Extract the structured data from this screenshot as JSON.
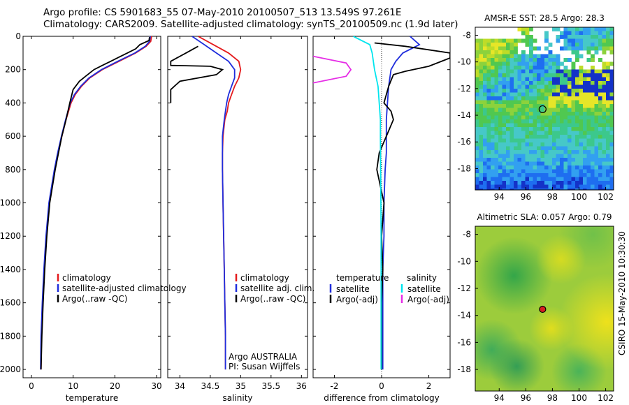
{
  "header": {
    "line1": "Argo profile: CS 5901683_55 07-May-2010 20100507_513 13.549S 97.261E",
    "line2": "Climatology: CARS2009. Satellite-adjusted climatology: synTS_20100509.nc (1.9d later)"
  },
  "side_label": "CSIRO 15-May-2010 10:30:30",
  "colors": {
    "climatology": "#e41a1c",
    "satellite": "#1f2ddc",
    "argo": "#000000",
    "sat_salt": "#00e5ee",
    "argo_salt": "#e62ee6"
  },
  "chart_data": [
    {
      "id": "temp",
      "type": "line",
      "xlabel": "temperature",
      "ylabel": "",
      "xlim": [
        -2,
        31
      ],
      "ylim": [
        2050,
        0
      ],
      "xticks": [
        0,
        10,
        20,
        30
      ],
      "yticks": [
        0,
        200,
        400,
        600,
        800,
        1000,
        1200,
        1400,
        1600,
        1800,
        2000
      ],
      "legend": [
        "climatology",
        "satellite-adjusted climatology",
        "Argo(..raw -QC)"
      ],
      "series": [
        {
          "name": "climatology",
          "color": "#e41a1c",
          "x": [
            28.8,
            28.6,
            27.5,
            25,
            21,
            17,
            14,
            12,
            10.5,
            9.5,
            8.3,
            7.3,
            6.4,
            5.6,
            4.3,
            3.6,
            3.1,
            2.7,
            2.4,
            2.3
          ],
          "y": [
            0,
            30,
            60,
            100,
            150,
            200,
            250,
            300,
            350,
            400,
            500,
            600,
            700,
            800,
            1000,
            1200,
            1400,
            1600,
            1800,
            2000
          ]
        },
        {
          "name": "satellite-adjusted climatology",
          "color": "#1f2ddc",
          "x": [
            28.5,
            28.3,
            27.3,
            24.8,
            20.7,
            16.8,
            13.8,
            11.8,
            10.3,
            9.3,
            8.2,
            7.2,
            6.3,
            5.5,
            4.2,
            3.5,
            3,
            2.6,
            2.3,
            2.2
          ],
          "y": [
            0,
            30,
            60,
            100,
            150,
            200,
            250,
            300,
            350,
            400,
            500,
            600,
            700,
            800,
            1000,
            1200,
            1400,
            1600,
            1800,
            2000
          ]
        },
        {
          "name": "Argo(..raw -QC)",
          "color": "#000000",
          "x": [
            28.3,
            28.2,
            26,
            25,
            23,
            21,
            19,
            17,
            15,
            13,
            11.5,
            10,
            9.2,
            8.3,
            7.3,
            6.5,
            5.7,
            4.4,
            3.7,
            3.2,
            2.8,
            2.5,
            2.3
          ],
          "y": [
            5,
            25,
            50,
            75,
            100,
            125,
            150,
            175,
            200,
            240,
            270,
            320,
            400,
            500,
            600,
            700,
            800,
            1000,
            1200,
            1400,
            1600,
            1800,
            2000
          ]
        }
      ]
    },
    {
      "id": "salt",
      "type": "line",
      "xlabel": "salinity",
      "ylabel": "",
      "xlim": [
        33.8,
        36.1
      ],
      "ylim": [
        2050,
        0
      ],
      "xticks": [
        34,
        34.5,
        35,
        35.5,
        36
      ],
      "yticks": [],
      "legend": [
        "climatology",
        "satellite adj. clim.",
        "Argo(..raw -QC)"
      ],
      "annotation": [
        "Argo AUSTRALIA",
        "PI: Susan Wijffels"
      ],
      "series": [
        {
          "name": "climatology",
          "color": "#e41a1c",
          "x": [
            34.3,
            34.55,
            34.8,
            34.97,
            35.0,
            34.97,
            34.9,
            34.85,
            34.8,
            34.78,
            34.74,
            34.71,
            34.7,
            34.7,
            34.71,
            34.72,
            34.73,
            34.74,
            34.75,
            34.75
          ],
          "y": [
            0,
            50,
            100,
            150,
            200,
            250,
            300,
            350,
            400,
            450,
            500,
            600,
            700,
            800,
            1000,
            1200,
            1400,
            1600,
            1800,
            2000
          ]
        },
        {
          "name": "satellite adj. clim.",
          "color": "#1f2ddc",
          "x": [
            34.2,
            34.4,
            34.6,
            34.8,
            34.9,
            34.9,
            34.85,
            34.8,
            34.77,
            34.75,
            34.73,
            34.7,
            34.7,
            34.7,
            34.71,
            34.72,
            34.73,
            34.74,
            34.75,
            34.75
          ],
          "y": [
            0,
            50,
            100,
            150,
            200,
            250,
            300,
            350,
            400,
            450,
            500,
            600,
            700,
            800,
            1000,
            1200,
            1400,
            1600,
            1800,
            2000
          ]
        },
        {
          "name": "Argo(..raw -QC)",
          "color": "#000000",
          "x": [
            34.3,
            34.1,
            33.85,
            33.85,
            34.5,
            34.7,
            34.6,
            34.0,
            33.85,
            33.85
          ],
          "y": [
            60,
            100,
            150,
            175,
            180,
            200,
            230,
            270,
            320,
            400
          ]
        }
      ]
    },
    {
      "id": "diff",
      "type": "line",
      "xlabel": "difference from climatology",
      "ylabel": "",
      "xlim": [
        -2.9,
        2.9
      ],
      "ylim": [
        2050,
        0
      ],
      "xticks": [
        -2,
        0,
        2
      ],
      "yticks": [],
      "legend_titles": [
        "temperature",
        "salinity"
      ],
      "legend": [
        "satellite",
        "Argo(-adj)",
        "satellite",
        "Argo(-adj)"
      ],
      "series": [
        {
          "name": "temperature satellite",
          "color": "#1f2ddc",
          "x": [
            1.2,
            1.6,
            0.9,
            0.6,
            0.4,
            0.3,
            0.25,
            0.2,
            0.2,
            0.2,
            0.15,
            0.1,
            0.1,
            0.05,
            0.05,
            0.05,
            0.05
          ],
          "y": [
            0,
            50,
            100,
            150,
            200,
            300,
            400,
            500,
            600,
            700,
            800,
            1000,
            1200,
            1400,
            1600,
            1800,
            2000
          ]
        },
        {
          "name": "temperature Argo(-adj)",
          "color": "#000000",
          "x": [
            -0.3,
            1.0,
            2.9,
            2.9,
            2.0,
            1.0,
            0.5,
            0.3,
            0.1,
            0.4,
            0.5,
            0.2,
            -0.1,
            -0.2,
            0.1,
            0.0,
            0.05,
            0.0,
            0.0
          ],
          "y": [
            40,
            60,
            100,
            130,
            180,
            210,
            230,
            300,
            400,
            450,
            500,
            600,
            700,
            800,
            1000,
            1200,
            1400,
            1600,
            2000
          ]
        },
        {
          "name": "salinity satellite",
          "color": "#00e5ee",
          "x": [
            -1.2,
            -0.5,
            -0.4,
            -0.3,
            -0.15,
            -0.1,
            -0.05,
            -0.05,
            -0.04,
            -0.03,
            -0.02,
            -0.02,
            -0.02
          ],
          "y": [
            0,
            50,
            100,
            200,
            300,
            400,
            500,
            600,
            800,
            1000,
            1200,
            1600,
            2000
          ]
        },
        {
          "name": "salinity Argo(-adj)",
          "color": "#e62ee6",
          "x": [
            -2.9,
            -1.5,
            -1.3,
            -1.5,
            -2.9
          ],
          "y": [
            120,
            160,
            200,
            240,
            280
          ]
        }
      ]
    },
    {
      "id": "sst",
      "type": "heatmap",
      "title": "AMSR-E SST: 28.5 Argo: 28.3",
      "xlim": [
        92.2,
        102.6
      ],
      "ylim": [
        -19.6,
        -7.4
      ],
      "xticks": [
        94,
        96,
        98,
        100,
        102
      ],
      "yticks": [
        -8,
        -10,
        -12,
        -14,
        -16,
        -18
      ],
      "argo_lon": 97.261,
      "argo_lat": -13.549
    },
    {
      "id": "sla",
      "type": "heatmap",
      "title": "Altimetric SLA: 0.057 Argo: 0.79",
      "xlim": [
        92.2,
        102.6
      ],
      "ylim": [
        -19.6,
        -7.4
      ],
      "xticks": [
        94,
        96,
        98,
        100,
        102
      ],
      "yticks": [
        -8,
        -10,
        -12,
        -14,
        -16,
        -18
      ],
      "argo_lon": 97.261,
      "argo_lat": -13.549
    }
  ]
}
